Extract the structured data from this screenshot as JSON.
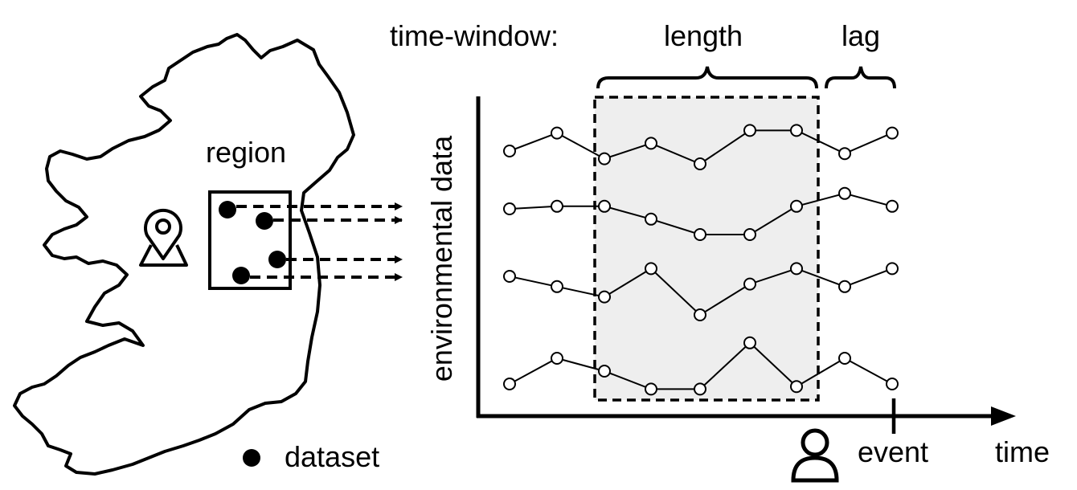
{
  "labels": {
    "time_window": "time-window:",
    "length": "length",
    "lag": "lag",
    "region": "region",
    "y_axis": "environmental data",
    "event": "event",
    "time": "time",
    "legend_dataset": "dataset"
  },
  "icons": {
    "map": "ireland-map",
    "location": "location-pin-icon",
    "person": "person-icon",
    "dataset_marker": "filled-circle"
  },
  "colors": {
    "stroke": "#000000",
    "window_fill": "#eeeeee",
    "background": "#ffffff"
  },
  "chart_data": {
    "type": "line",
    "series_count": 4,
    "points_per_series": 9,
    "series": [
      {
        "values": [
          0.45,
          0.52,
          0.42,
          0.48,
          0.4,
          0.53,
          0.53,
          0.44,
          0.52
        ]
      },
      {
        "values": [
          0.5,
          0.51,
          0.51,
          0.46,
          0.4,
          0.4,
          0.51,
          0.56,
          0.51
        ]
      },
      {
        "values": [
          0.55,
          0.51,
          0.47,
          0.58,
          0.4,
          0.52,
          0.58,
          0.51,
          0.58
        ]
      },
      {
        "values": [
          0.5,
          0.6,
          0.55,
          0.48,
          0.48,
          0.66,
          0.49,
          0.6,
          0.5
        ]
      }
    ],
    "window_start_index": 2,
    "window_end_index": 6,
    "event_index": 8
  }
}
